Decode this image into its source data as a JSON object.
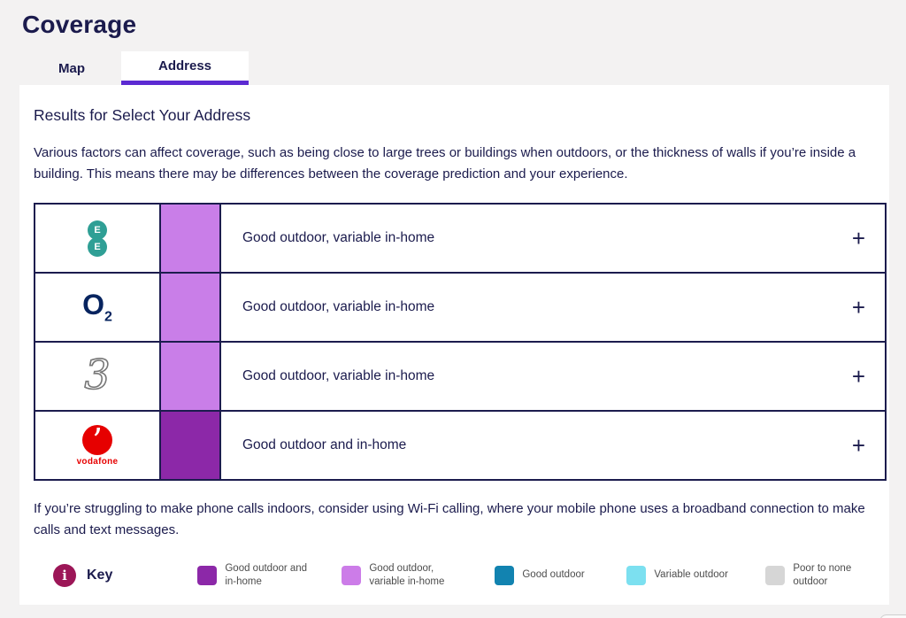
{
  "page": {
    "title": "Coverage",
    "accent_color": "#5c2ad2",
    "text_color": "#1b1b4d",
    "panel_bg": "#ffffff",
    "page_bg": "#f3f2f2"
  },
  "tabs": [
    {
      "label": "Map",
      "active": false
    },
    {
      "label": "Address",
      "active": true
    }
  ],
  "results": {
    "heading": "Results for Select Your Address",
    "intro": "Various factors can affect coverage, such as being close to large trees or buildings when outdoors, or the thickness of walls if you’re inside a building. This means there may be differences between the coverage prediction and your experience.",
    "footnote": "If you’re struggling to make phone calls indoors, consider using Wi-Fi calling, where your mobile phone uses a broadband connection to make calls and text messages."
  },
  "table": {
    "expand_label": "+"
  },
  "operators": [
    {
      "name": "EE",
      "logo_text": "E",
      "status": "Good outdoor, variable in-home",
      "color": "#c97ee8",
      "logo_color": "#2f9f95"
    },
    {
      "name": "O2",
      "logo_main": "O",
      "logo_sub": "2",
      "status": "Good outdoor, variable in-home",
      "color": "#c97ee8",
      "logo_color": "#07245f"
    },
    {
      "name": "Three",
      "logo_text": "3",
      "status": "Good outdoor, variable in-home",
      "color": "#c97ee8",
      "logo_color": "#777777"
    },
    {
      "name": "Vodafone",
      "logo_text": "vodafone",
      "status": "Good outdoor and in-home",
      "color": "#8c28a8",
      "logo_color": "#e60000"
    }
  ],
  "key": {
    "label": "Key",
    "icon_glyph": "i",
    "icon_color": "#9c1657",
    "items": [
      {
        "label": "Good outdoor and in-home",
        "color": "#8c28a8"
      },
      {
        "label": "Good outdoor, variable in-home",
        "color": "#cc7ce8"
      },
      {
        "label": "Good outdoor",
        "color": "#1283b0"
      },
      {
        "label": "Variable outdoor",
        "color": "#7ce0f0"
      },
      {
        "label": "Poor to none outdoor",
        "color": "#d6d6d6"
      }
    ]
  }
}
